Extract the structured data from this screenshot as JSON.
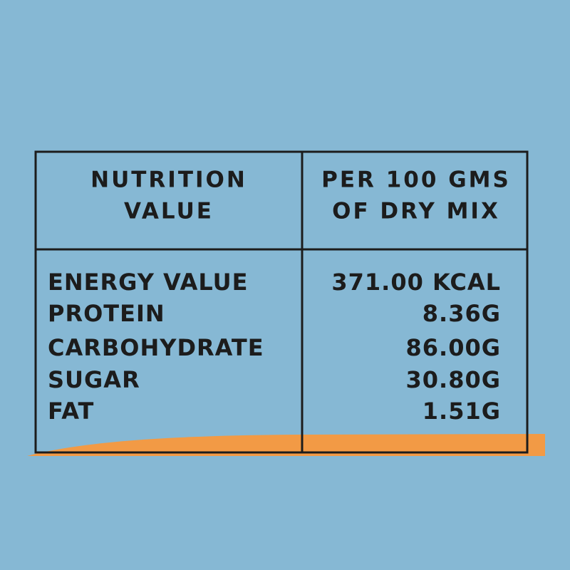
{
  "table": {
    "header": [
      [
        "NUTRITION",
        "VALUE"
      ],
      [
        "PER 100 GMS",
        "OF DRY MIX"
      ]
    ],
    "rows": [
      [
        "ENERGY VALUE",
        "371.00 KCAL"
      ],
      [
        "PROTEIN",
        "8.36G"
      ],
      [
        "CARBOHYDRATE",
        "86.00G"
      ],
      [
        "SUGAR",
        "30.80G"
      ],
      [
        "FAT",
        "1.51G"
      ]
    ]
  }
}
